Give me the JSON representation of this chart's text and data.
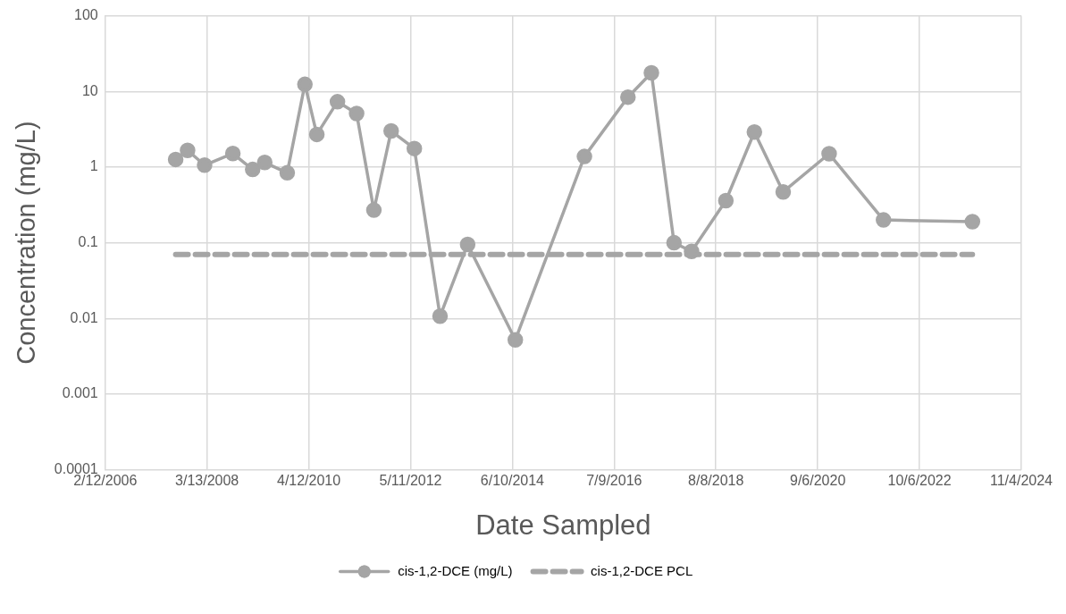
{
  "chart_data": {
    "type": "line",
    "xlabel": "Date Sampled",
    "ylabel": "Concentration (mg/L)",
    "log": "y",
    "grid": true,
    "legend": "bottom",
    "xlim": [
      "2006-02-12",
      "2024-11-04"
    ],
    "xticks": [
      {
        "value": "2006-02-12",
        "label": "2/12/2006"
      },
      {
        "value": "2008-03-13",
        "label": "3/13/2008"
      },
      {
        "value": "2010-04-12",
        "label": "4/12/2010"
      },
      {
        "value": "2012-05-11",
        "label": "5/11/2012"
      },
      {
        "value": "2014-06-10",
        "label": "6/10/2014"
      },
      {
        "value": "2016-07-09",
        "label": "7/9/2016"
      },
      {
        "value": "2018-08-08",
        "label": "8/8/2018"
      },
      {
        "value": "2020-09-06",
        "label": "9/6/2020"
      },
      {
        "value": "2022-10-06",
        "label": "10/6/2022"
      },
      {
        "value": "2024-11-04",
        "label": "11/4/2024"
      }
    ],
    "ylim": [
      0.0001,
      100
    ],
    "yticks": [
      0.0001,
      0.001,
      0.01,
      0.1,
      1,
      10,
      100
    ],
    "series": [
      {
        "name": "cis-1,2-DCE (mg/L)",
        "color": "#a5a5a5",
        "marker": "circle",
        "line_style": "solid",
        "x": [
          "2007-07-23",
          "2007-10-20",
          "2008-02-24",
          "2008-09-22",
          "2009-02-17",
          "2009-05-18",
          "2009-11-02",
          "2010-03-14",
          "2010-06-11",
          "2010-11-12",
          "2011-04-04",
          "2011-08-11",
          "2011-12-18",
          "2012-06-08",
          "2012-12-17",
          "2013-07-11",
          "2014-07-02",
          "2015-11-30",
          "2016-10-20",
          "2017-04-13",
          "2017-09-29",
          "2018-02-07",
          "2018-10-21",
          "2019-05-22",
          "2019-12-23",
          "2020-11-30",
          "2022-01-10",
          "2023-11-05"
        ],
        "values": [
          1.26,
          1.66,
          1.06,
          1.51,
          0.93,
          1.15,
          0.84,
          12.4,
          2.7,
          7.3,
          5.1,
          0.27,
          3.0,
          1.76,
          0.0107,
          0.095,
          0.0052,
          1.38,
          8.4,
          17.6,
          0.1,
          0.077,
          0.36,
          2.9,
          0.47,
          1.5,
          0.2,
          0.19
        ]
      },
      {
        "name": "cis-1,2-DCE PCL",
        "color": "#a5a5a5",
        "marker": "none",
        "line_style": "dashed",
        "x": [
          "2007-07-23",
          "2023-11-05"
        ],
        "values": [
          0.07,
          0.07
        ]
      }
    ]
  }
}
